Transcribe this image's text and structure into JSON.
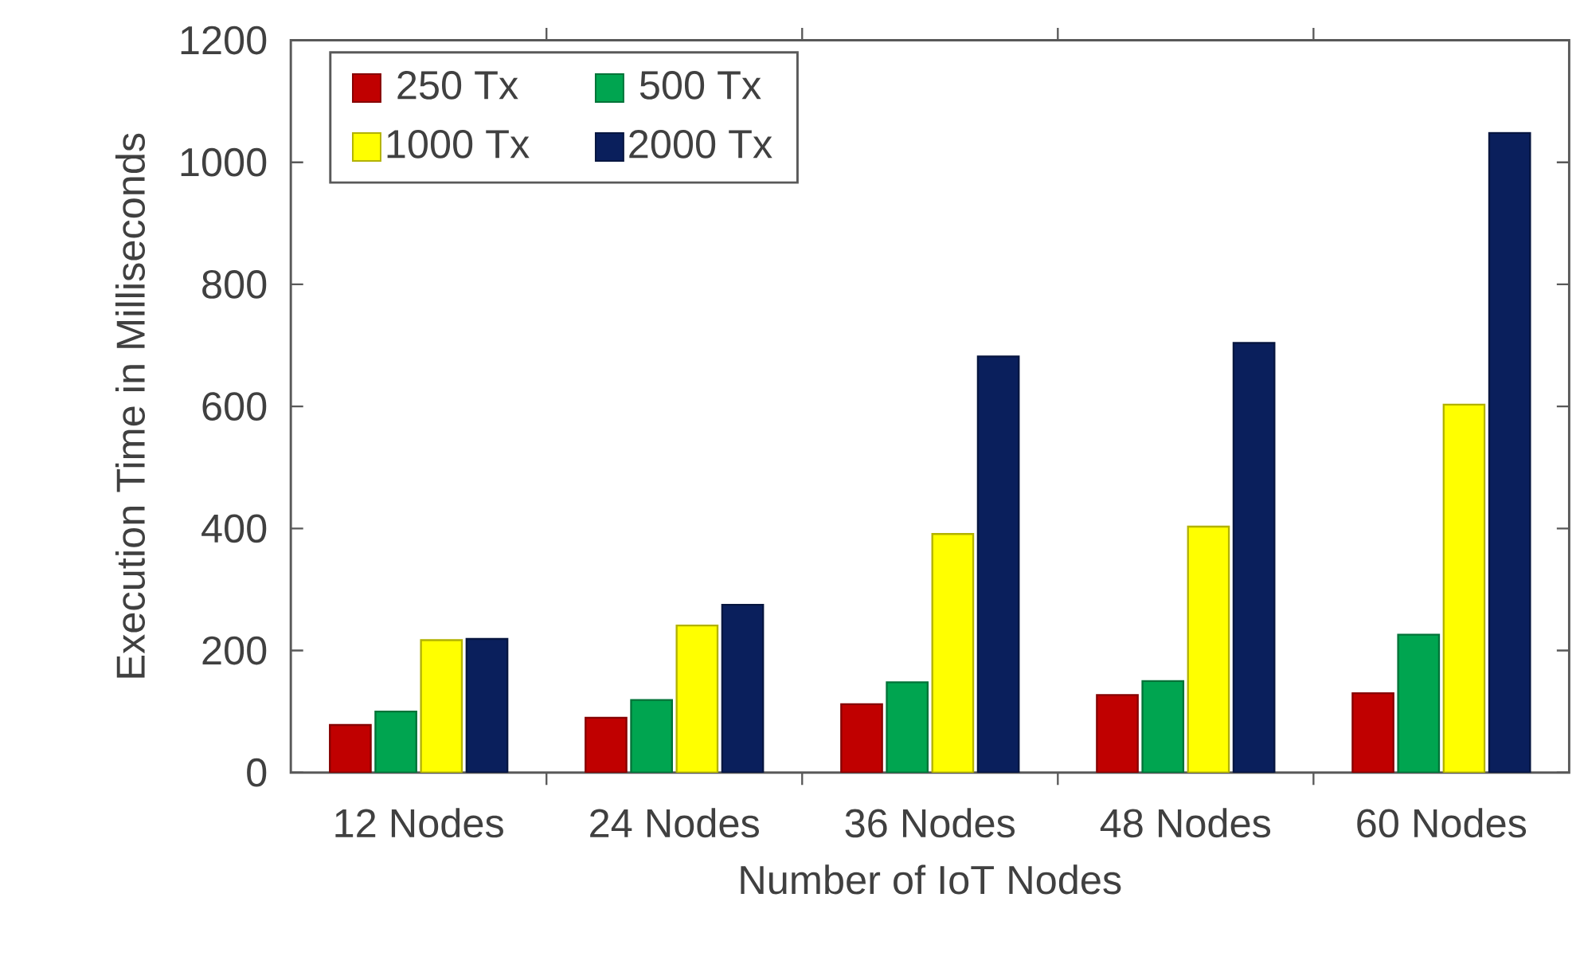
{
  "chart_data": {
    "type": "bar",
    "categories": [
      "12 Nodes",
      "24 Nodes",
      "36 Nodes",
      "48 Nodes",
      "60 Nodes"
    ],
    "series": [
      {
        "name": "250 Tx",
        "color": "#c00000",
        "values": [
          78,
          90,
          112,
          127,
          130
        ]
      },
      {
        "name": "500 Tx",
        "color": "#00a550",
        "values": [
          100,
          119,
          148,
          150,
          226
        ]
      },
      {
        "name": "1000 Tx",
        "color": "#ffff00",
        "values": [
          217,
          241,
          391,
          403,
          603
        ]
      },
      {
        "name": "2000 Tx",
        "color": "#0a1f5c",
        "values": [
          219,
          275,
          682,
          704,
          1048
        ]
      }
    ],
    "xlabel": "Number of IoT Nodes",
    "ylabel": "Execution Time in Milliseconds",
    "ylim": [
      0,
      1200
    ],
    "yticks": [
      0,
      200,
      400,
      600,
      800,
      1000,
      1200
    ],
    "legend": "top left",
    "grid": false
  }
}
